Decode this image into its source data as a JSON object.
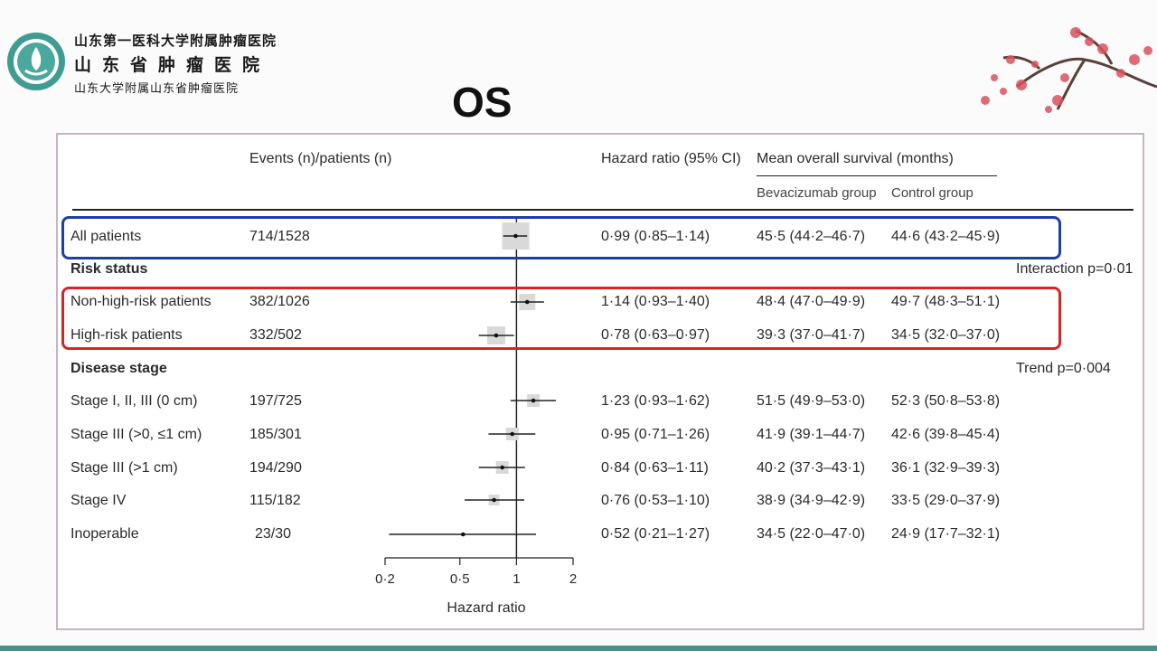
{
  "header": {
    "institution_line1": "山东第一医科大学附属肿瘤医院",
    "institution_line2": "山东省肿瘤医院",
    "institution_line3": "山东大学附属山东省肿瘤医院",
    "slide_title": "OS"
  },
  "table": {
    "col_events": "Events (n)/patients (n)",
    "col_hr": "Hazard ratio (95% CI)",
    "col_mean_os": "Mean overall survival (months)",
    "col_bev": "Bevacizumab group",
    "col_ctrl": "Control group",
    "section_risk": "Risk status",
    "section_stage": "Disease stage",
    "risk_pvalue": "Interaction p=0·01",
    "stage_pvalue": "Trend p=0·004"
  },
  "chart_data": {
    "type": "forest",
    "xlabel": "Hazard ratio",
    "x_scale": "log",
    "ticks": [
      0.2,
      0.5,
      1,
      2
    ],
    "tick_labels": [
      "0·2",
      "0·5",
      "1",
      "2"
    ],
    "reference_line": 1,
    "rows": [
      {
        "label": "All patients",
        "events": "714/1528",
        "hr": 0.99,
        "lo": 0.85,
        "hi": 1.14,
        "hr_text": "0·99  (0·85–1·14)",
        "bev": "45·5 (44·2–46·7)",
        "ctrl": "44·6 (43·2–45·9)"
      },
      {
        "label": "Non-high-risk patients",
        "events": "382/1026",
        "hr": 1.14,
        "lo": 0.93,
        "hi": 1.4,
        "hr_text": "1·14  (0·93–1·40)",
        "bev": "48·4 (47·0–49·9)",
        "ctrl": "49·7 (48·3–51·1)"
      },
      {
        "label": "High-risk patients",
        "events": "332/502",
        "hr": 0.78,
        "lo": 0.63,
        "hi": 0.97,
        "hr_text": "0·78  (0·63–0·97)",
        "bev": "39·3 (37·0–41·7)",
        "ctrl": "34·5 (32·0–37·0)"
      },
      {
        "label": "Stage I, II, III (0 cm)",
        "events": "197/725",
        "hr": 1.23,
        "lo": 0.93,
        "hi": 1.62,
        "hr_text": "1·23  (0·93–1·62)",
        "bev": "51·5 (49·9–53·0)",
        "ctrl": "52·3 (50·8–53·8)"
      },
      {
        "label": "Stage III (>0, ≤1 cm)",
        "events": "185/301",
        "hr": 0.95,
        "lo": 0.71,
        "hi": 1.26,
        "hr_text": "0·95  (0·71–1·26)",
        "bev": "41·9 (39·1–44·7)",
        "ctrl": "42·6 (39·8–45·4)"
      },
      {
        "label": "Stage III (>1 cm)",
        "events": "194/290",
        "hr": 0.84,
        "lo": 0.63,
        "hi": 1.11,
        "hr_text": "0·84  (0·63–1·11)",
        "bev": "40·2 (37·3–43·1)",
        "ctrl": "36·1 (32·9–39·3)"
      },
      {
        "label": "Stage IV",
        "events": "115/182",
        "hr": 0.76,
        "lo": 0.53,
        "hi": 1.1,
        "hr_text": "0·76  (0·53–1·10)",
        "bev": "38·9 (34·9–42·9)",
        "ctrl": "33·5 (29·0–37·9)"
      },
      {
        "label": "Inoperable",
        "events": "23/30",
        "hr": 0.52,
        "lo": 0.21,
        "hi": 1.27,
        "hr_text": "0·52  (0·21–1·27)",
        "bev": "34·5 (22·0–47·0)",
        "ctrl": "24·9 (17·7–32·1)"
      }
    ]
  },
  "colors": {
    "blue_box": "#1f3fa6",
    "red_box": "#d32626",
    "ci_box": "#d9d9d9"
  }
}
